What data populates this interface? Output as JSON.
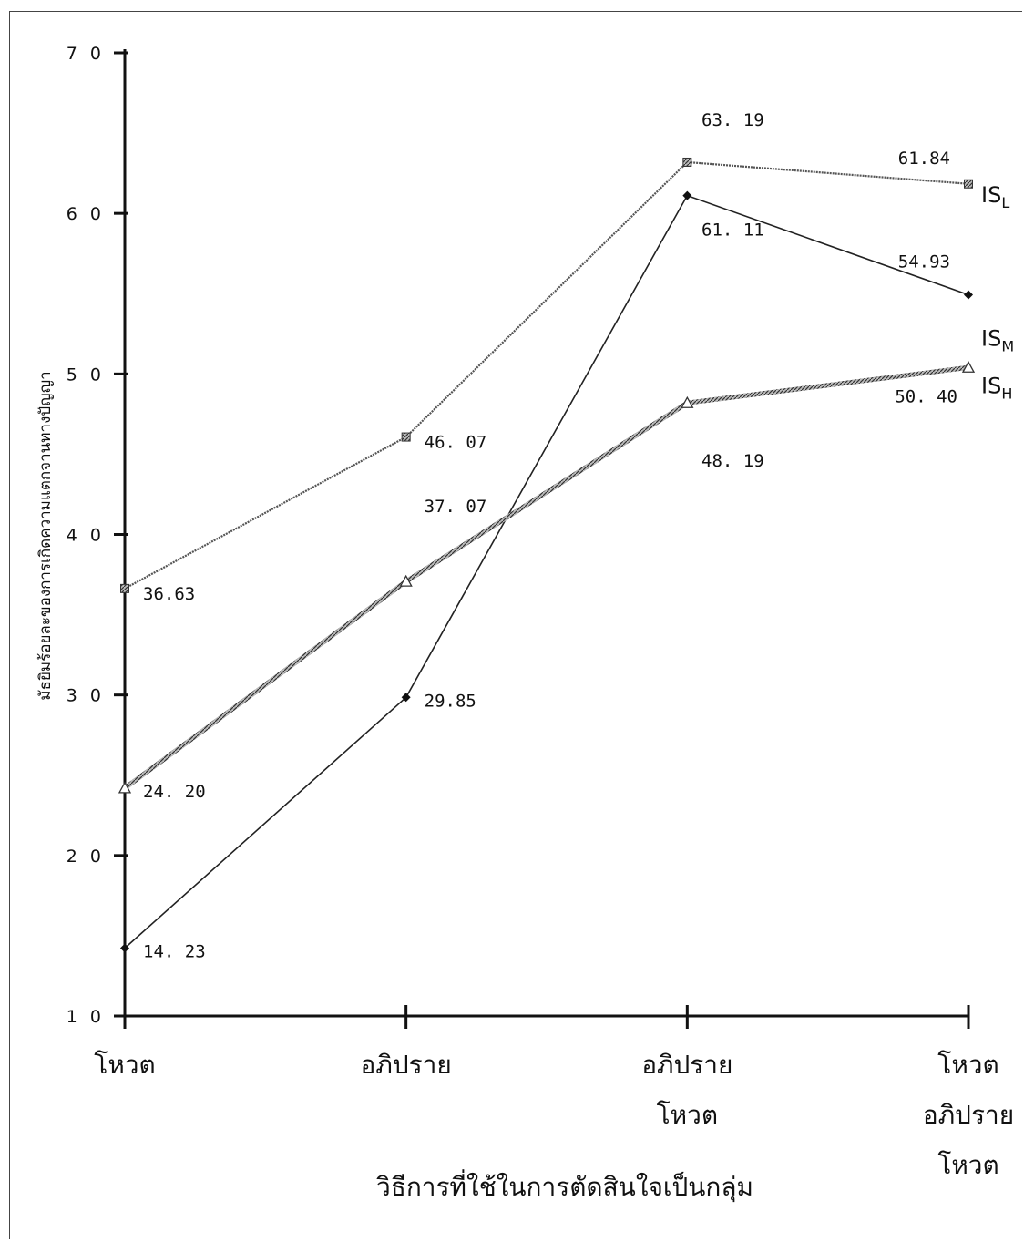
{
  "chart_data": {
    "type": "line",
    "title": "",
    "xlabel": "วิธีการที่ใช้ในการตัดสินใจเป็นกลุ่ม",
    "ylabel": "มัธยิมร้อยละของการเกิดความแตกจานทางปัญญา",
    "ylim": [
      10,
      70
    ],
    "yticks": [
      "1 0",
      "2 0",
      "3 0",
      "4 0",
      "5 0",
      "6 0",
      "7 0"
    ],
    "ytick_values": [
      10,
      20,
      30,
      40,
      50,
      60,
      70
    ],
    "categories": [
      [
        "โหวต"
      ],
      [
        "อภิปราย"
      ],
      [
        "อภิปราย",
        "โหวต"
      ],
      [
        "โหวต",
        "อภิปราย",
        "โหวต"
      ]
    ],
    "grid": false,
    "series": [
      {
        "name": "IS",
        "sub": "L",
        "values": [
          36.63,
          46.07,
          63.19,
          61.84
        ],
        "labels": [
          "36.63",
          "46. 07",
          "63. 19",
          "61.84"
        ],
        "marker": "hatched-square",
        "line_style": "dotted-thin",
        "color": "#555555"
      },
      {
        "name": "IS",
        "sub": "M",
        "values": [
          14.23,
          29.85,
          61.11,
          54.93
        ],
        "labels": [
          "14. 23",
          "29.85",
          "61. 11",
          "54.93"
        ],
        "marker": "diamond",
        "line_style": "solid-thin",
        "color": "#222222"
      },
      {
        "name": "IS",
        "sub": "H",
        "values": [
          24.2,
          37.07,
          48.19,
          50.4
        ],
        "labels": [
          "24. 20",
          "37. 07",
          "48. 19",
          "50. 40"
        ],
        "marker": "open-triangle",
        "line_style": "thick-hatched",
        "color": "#444444"
      }
    ]
  }
}
